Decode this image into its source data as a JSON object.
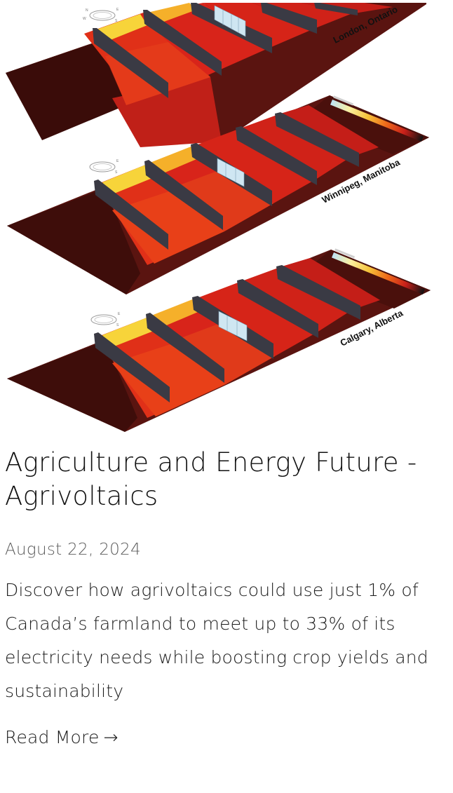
{
  "article": {
    "title": "Agriculture and Energy Future - Agrivoltaics",
    "date": "August 22, 2024",
    "excerpt": "Discover how agrivoltaics could use just 1% of Canada’s farmland to meet up to 33% of its electricity needs while boosting crop yields and sustainability",
    "read_more_label": "Read More",
    "read_more_arrow": "→"
  },
  "figure": {
    "panels": [
      {
        "location": "London, Ontario"
      },
      {
        "location": "Winnipeg, Manitoba"
      },
      {
        "location": "Calgary, Alberta"
      }
    ],
    "colors": {
      "dark_red": "#5a1410",
      "red": "#d8241a",
      "bright_red": "#ee3a1a",
      "orange": "#f07a10",
      "yellow": "#f6d23a",
      "panel": "#3a3a44",
      "sensor": "#cfe6f2"
    }
  }
}
